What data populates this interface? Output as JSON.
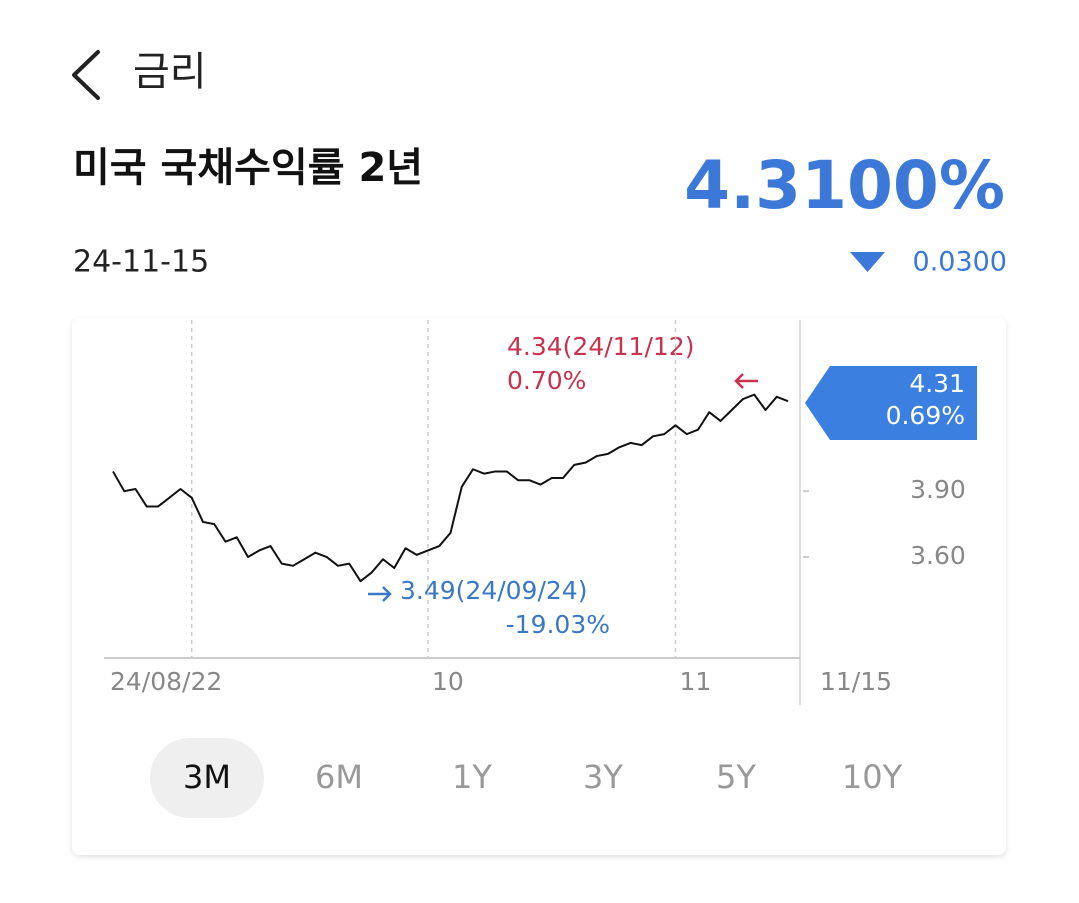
{
  "header": {
    "title": "금리"
  },
  "quote": {
    "name": "미국 국채수익률 2년",
    "date": "24-11-15",
    "price": "4.3100%",
    "change": "0.0300"
  },
  "chart_data": {
    "type": "line",
    "color": "#111111",
    "categories": [
      null,
      null,
      null,
      null,
      null,
      null,
      null,
      "24/08/22",
      null,
      null,
      null,
      null,
      null,
      null,
      null,
      null,
      null,
      null,
      null,
      null,
      null,
      null,
      null,
      null,
      null,
      null,
      null,
      null,
      "10",
      null,
      null,
      null,
      null,
      null,
      null,
      null,
      null,
      null,
      null,
      null,
      null,
      null,
      null,
      null,
      null,
      null,
      null,
      null,
      null,
      null,
      "11",
      null,
      null,
      null,
      null,
      null,
      null,
      null,
      null,
      null,
      "11/15"
    ],
    "values": [
      3.99,
      3.9,
      3.91,
      3.83,
      3.83,
      3.87,
      3.91,
      3.87,
      3.76,
      3.75,
      3.67,
      3.69,
      3.6,
      3.63,
      3.65,
      3.57,
      3.56,
      3.59,
      3.62,
      3.6,
      3.56,
      3.57,
      3.49,
      3.53,
      3.59,
      3.55,
      3.64,
      3.61,
      3.63,
      3.65,
      3.71,
      3.92,
      4.0,
      3.98,
      3.99,
      3.99,
      3.95,
      3.95,
      3.93,
      3.96,
      3.96,
      4.02,
      4.03,
      4.06,
      4.07,
      4.1,
      4.12,
      4.11,
      4.15,
      4.16,
      4.2,
      4.16,
      4.18,
      4.26,
      4.22,
      4.27,
      4.32,
      4.34,
      4.27,
      4.33,
      4.31
    ],
    "ylim": [
      3.14,
      4.68
    ],
    "yticks": [
      {
        "value": 3.9,
        "label": "3.90"
      },
      {
        "value": 3.6,
        "label": "3.60"
      }
    ],
    "current": {
      "value": "4.31",
      "change": "0.69%"
    },
    "high": {
      "label": "4.34(24/11/12)",
      "change": "0.70%"
    },
    "low": {
      "label": "3.49(24/09/24)",
      "change": "-19.03%"
    }
  },
  "tabs": {
    "items": [
      "3M",
      "6M",
      "1Y",
      "3Y",
      "5Y",
      "10Y"
    ],
    "selected": 0
  }
}
